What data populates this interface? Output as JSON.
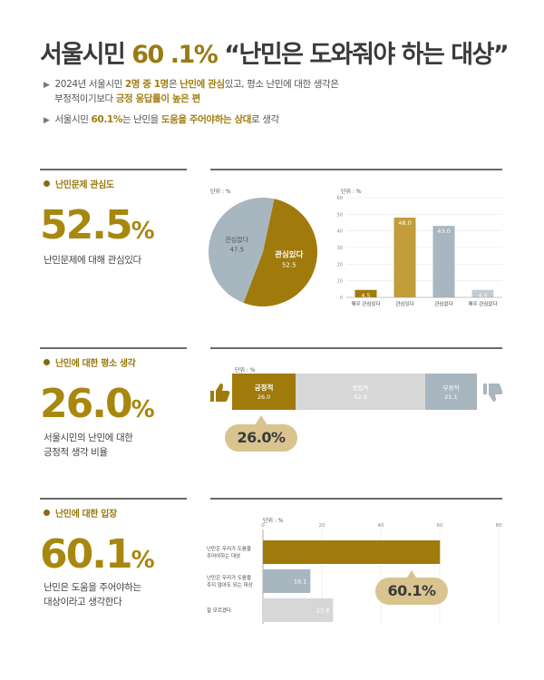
{
  "header": {
    "title_a": "서울시민 ",
    "title_b": "60 .1%",
    "title_c": " “난민은 도와줘야 하는 대상”",
    "bullet1": [
      {
        "t": "2024년 서울시민 ",
        "s": "n"
      },
      {
        "t": "2명 중 1명",
        "s": "hl"
      },
      {
        "t": "은 ",
        "s": "n"
      },
      {
        "t": "난민에 관심",
        "s": "hl"
      },
      {
        "t": "있고, 평소 난민에 대한 생각은",
        "s": "n"
      }
    ],
    "bullet1_line2": [
      {
        "t": "부정적이기보다 ",
        "s": "n"
      },
      {
        "t": "긍정 응답률이 높은 편",
        "s": "hl"
      }
    ],
    "bullet2": [
      {
        "t": "서울시민 ",
        "s": "n"
      },
      {
        "t": "60.1%",
        "s": "hl"
      },
      {
        "t": "는 난민을 ",
        "s": "n"
      },
      {
        "t": "도움을 주어야하는 상대",
        "s": "hl"
      },
      {
        "t": "로 생각",
        "s": "n"
      }
    ]
  },
  "sections": [
    {
      "label": "난민문제 관심도",
      "big": "52.5",
      "pct": "%",
      "desc": [
        "난민문제에 대해 관심있다"
      ]
    },
    {
      "label": "난민에 대한 평소 생각",
      "big": "26.0",
      "pct": "%",
      "desc": [
        "서울시민의 난민에 대한",
        "긍정적 생각 비율"
      ]
    },
    {
      "label": "난민에 대한 입장",
      "big": "60.1",
      "pct": "%",
      "desc": [
        "난민은 도움을 주어야하는",
        "대상이라고 생각한다"
      ]
    }
  ],
  "unit_label": "단위 : %",
  "colors": {
    "gold_dark": "#a07a0b",
    "gold": "#c29d3a",
    "grey_blue": "#a8b6bf",
    "light_grey": "#d7d7d7",
    "bubble": "#d9c48f"
  },
  "chart_data": [
    {
      "type": "pie",
      "slices": [
        {
          "label": "관심있다",
          "value": 52.5,
          "color": "#a07a0b"
        },
        {
          "label": "관심없다",
          "value": 47.5,
          "color": "#a8b6bf"
        }
      ]
    },
    {
      "type": "bar",
      "categories": [
        "매우 관심있다",
        "관심있다",
        "관심없다",
        "매우 관심없다"
      ],
      "values": [
        4.5,
        48.0,
        43.0,
        4.5
      ],
      "value_labels": [
        "4.5",
        "48.0",
        "43.0",
        "4.5"
      ],
      "colors": [
        "#a07a0b",
        "#c29d3a",
        "#a8b6bf",
        "#c3ccd2"
      ],
      "ylim": [
        0,
        60
      ],
      "yticks": [
        "0",
        "10",
        "20",
        "30",
        "40",
        "50",
        "60"
      ]
    },
    {
      "type": "bar",
      "orientation": "horizontal-stacked",
      "segments": [
        {
          "label": "긍정적",
          "value": 26.0,
          "value_label": "26.0",
          "color": "#a07a0b"
        },
        {
          "label": "중립적",
          "value": 52.9,
          "value_label": "52.9",
          "color": "#d7d7d7"
        },
        {
          "label": "부정적",
          "value": 21.1,
          "value_label": "21.1",
          "color": "#a8b6bf"
        }
      ],
      "callout": "26.0%"
    },
    {
      "type": "bar",
      "orientation": "horizontal",
      "categories": [
        [
          "난민은 우리가 도움을",
          "주어야하는 대상"
        ],
        [
          "난민은 우리가 도움을",
          "주지 않아도 되는 대상"
        ],
        [
          "잘 모르겠다"
        ]
      ],
      "values": [
        60.1,
        16.1,
        23.8
      ],
      "value_labels": [
        "",
        "16.1",
        "23.8"
      ],
      "colors": [
        "#a07a0b",
        "#a8b6bf",
        "#d7d7d7"
      ],
      "xlim": [
        0,
        80
      ],
      "xticks": [
        "0",
        "20",
        "40",
        "60",
        "80"
      ],
      "callout": "60.1%"
    }
  ]
}
